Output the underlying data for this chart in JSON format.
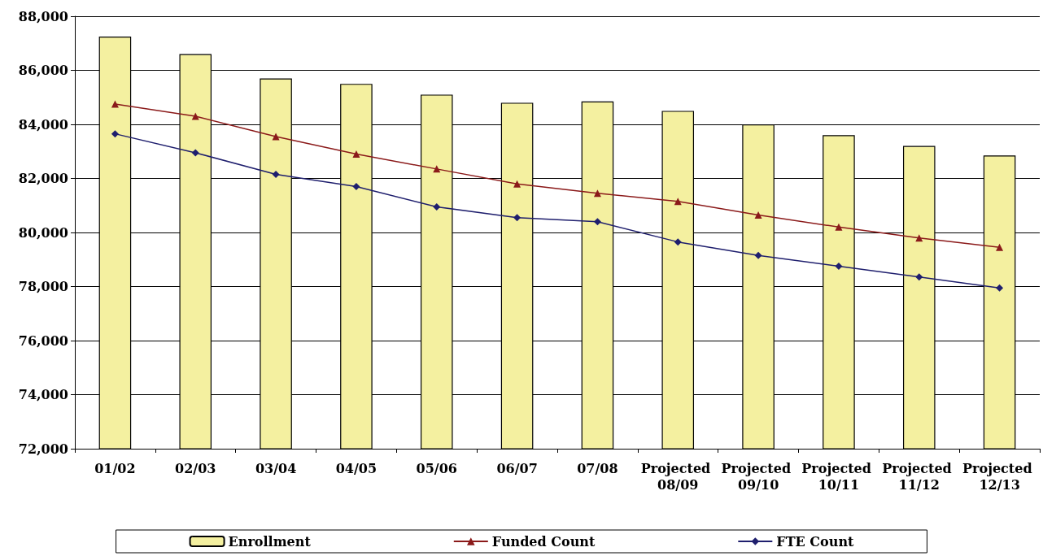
{
  "chart_data": {
    "type": "bar",
    "categories": [
      "01/02",
      "02/03",
      "03/04",
      "04/05",
      "05/06",
      "06/07",
      "07/08",
      "Projected 08/09",
      "Projected 09/10",
      "Projected 10/11",
      "Projected 11/12",
      "Projected 12/13"
    ],
    "series": [
      {
        "name": "Enrollment",
        "color": "#f4f0a0",
        "values": [
          87250,
          86600,
          85700,
          85500,
          85100,
          84800,
          84850,
          84500,
          84000,
          83600,
          83200,
          82850
        ]
      },
      {
        "name": "Funded Count",
        "type": "line",
        "marker": "triangle",
        "color": "#8b1a1a",
        "values": [
          84750,
          84300,
          83550,
          82900,
          82350,
          81800,
          81450,
          81150,
          80650,
          80200,
          79800,
          79450
        ]
      },
      {
        "name": "FTE Count",
        "type": "line",
        "marker": "diamond",
        "color": "#1f1f6e",
        "values": [
          83650,
          82950,
          82150,
          81700,
          80950,
          80550,
          80400,
          79650,
          79150,
          78750,
          78350,
          77950
        ]
      }
    ],
    "ylim": [
      72000,
      88000
    ],
    "yticks": [
      {
        "value": 72000,
        "label": "72,000"
      },
      {
        "value": 74000,
        "label": "74,000"
      },
      {
        "value": 76000,
        "label": "76,000"
      },
      {
        "value": 78000,
        "label": "78,000"
      },
      {
        "value": 80000,
        "label": "80,000"
      },
      {
        "value": 82000,
        "label": "82,000"
      },
      {
        "value": 84000,
        "label": "84,000"
      },
      {
        "value": 86000,
        "label": "86,000"
      },
      {
        "value": 88000,
        "label": "88,000"
      }
    ],
    "grid": "y",
    "legend": "bottom"
  }
}
